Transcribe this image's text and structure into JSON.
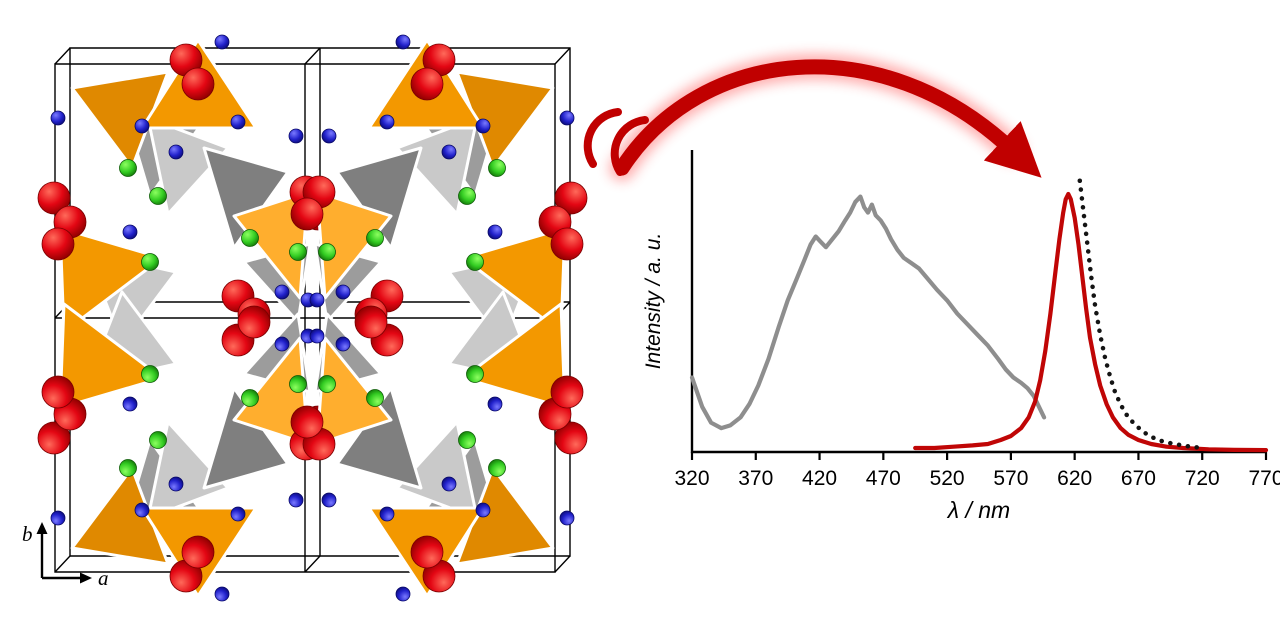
{
  "structure": {
    "axis_a_label": "a",
    "axis_b_label": "b",
    "colors": {
      "orange": "#F39800",
      "orange_dark": "#E08900",
      "orange_light": "#FFAE2E",
      "gray_dark": "#7F7F7F",
      "gray_mid": "#9C9C9C",
      "gray_light": "#C9C9C9",
      "red_sphere": "#E30613",
      "blue_sphere": "#2222CC",
      "green_sphere": "#33CC22",
      "frame": "#000000"
    }
  },
  "arrow": {
    "color": "#C00000",
    "glow": "#FF5050"
  },
  "chart_data": {
    "type": "line",
    "title": "",
    "xlabel": "λ / nm",
    "ylabel": "Intensity / a. u.",
    "xlim": [
      320,
      770
    ],
    "ylim": [
      0,
      1.05
    ],
    "grid": false,
    "legend": "none",
    "xticks": [
      320,
      370,
      420,
      470,
      520,
      570,
      620,
      670,
      720,
      770
    ],
    "series": [
      {
        "name": "gray-excitation",
        "color": "#8E8E8E",
        "style": "solid",
        "points": [
          [
            320,
            0.28
          ],
          [
            328,
            0.17
          ],
          [
            335,
            0.11
          ],
          [
            343,
            0.09
          ],
          [
            350,
            0.1
          ],
          [
            358,
            0.13
          ],
          [
            365,
            0.18
          ],
          [
            372,
            0.25
          ],
          [
            380,
            0.35
          ],
          [
            388,
            0.47
          ],
          [
            395,
            0.57
          ],
          [
            402,
            0.65
          ],
          [
            408,
            0.72
          ],
          [
            413,
            0.78
          ],
          [
            417,
            0.81
          ],
          [
            421,
            0.79
          ],
          [
            425,
            0.77
          ],
          [
            430,
            0.8
          ],
          [
            435,
            0.83
          ],
          [
            440,
            0.87
          ],
          [
            444,
            0.9
          ],
          [
            448,
            0.94
          ],
          [
            452,
            0.96
          ],
          [
            455,
            0.92
          ],
          [
            458,
            0.9
          ],
          [
            461,
            0.93
          ],
          [
            464,
            0.89
          ],
          [
            468,
            0.87
          ],
          [
            472,
            0.84
          ],
          [
            476,
            0.8
          ],
          [
            481,
            0.76
          ],
          [
            486,
            0.73
          ],
          [
            492,
            0.71
          ],
          [
            498,
            0.69
          ],
          [
            505,
            0.65
          ],
          [
            512,
            0.61
          ],
          [
            520,
            0.57
          ],
          [
            528,
            0.52
          ],
          [
            536,
            0.48
          ],
          [
            544,
            0.44
          ],
          [
            552,
            0.4
          ],
          [
            560,
            0.35
          ],
          [
            566,
            0.31
          ],
          [
            572,
            0.28
          ],
          [
            578,
            0.26
          ],
          [
            583,
            0.24
          ],
          [
            588,
            0.21
          ],
          [
            592,
            0.17
          ],
          [
            596,
            0.13
          ]
        ]
      },
      {
        "name": "red-emission",
        "color": "#C00606",
        "style": "solid",
        "points": [
          [
            495,
            0.015
          ],
          [
            510,
            0.015
          ],
          [
            525,
            0.02
          ],
          [
            540,
            0.025
          ],
          [
            552,
            0.03
          ],
          [
            562,
            0.045
          ],
          [
            570,
            0.06
          ],
          [
            578,
            0.09
          ],
          [
            584,
            0.13
          ],
          [
            589,
            0.19
          ],
          [
            593,
            0.27
          ],
          [
            597,
            0.38
          ],
          [
            601,
            0.52
          ],
          [
            605,
            0.68
          ],
          [
            608,
            0.8
          ],
          [
            611,
            0.9
          ],
          [
            613,
            0.95
          ],
          [
            615,
            0.97
          ],
          [
            617,
            0.95
          ],
          [
            620,
            0.88
          ],
          [
            623,
            0.78
          ],
          [
            626,
            0.66
          ],
          [
            629,
            0.54
          ],
          [
            632,
            0.43
          ],
          [
            636,
            0.33
          ],
          [
            640,
            0.25
          ],
          [
            645,
            0.18
          ],
          [
            650,
            0.13
          ],
          [
            656,
            0.09
          ],
          [
            662,
            0.065
          ],
          [
            670,
            0.045
          ],
          [
            680,
            0.03
          ],
          [
            692,
            0.02
          ],
          [
            705,
            0.015
          ],
          [
            725,
            0.01
          ],
          [
            745,
            0.008
          ],
          [
            770,
            0.007
          ]
        ]
      },
      {
        "name": "black-dotted-fit",
        "color": "#141414",
        "style": "dotted",
        "points": [
          [
            624,
            1.02
          ],
          [
            627,
            0.9
          ],
          [
            630,
            0.78
          ],
          [
            633,
            0.66
          ],
          [
            636,
            0.55
          ],
          [
            640,
            0.44
          ],
          [
            644,
            0.35
          ],
          [
            648,
            0.28
          ],
          [
            652,
            0.22
          ],
          [
            657,
            0.17
          ],
          [
            662,
            0.13
          ],
          [
            668,
            0.1
          ],
          [
            674,
            0.075
          ],
          [
            681,
            0.055
          ],
          [
            689,
            0.04
          ],
          [
            698,
            0.03
          ],
          [
            708,
            0.022
          ],
          [
            718,
            0.016
          ]
        ]
      }
    ]
  }
}
